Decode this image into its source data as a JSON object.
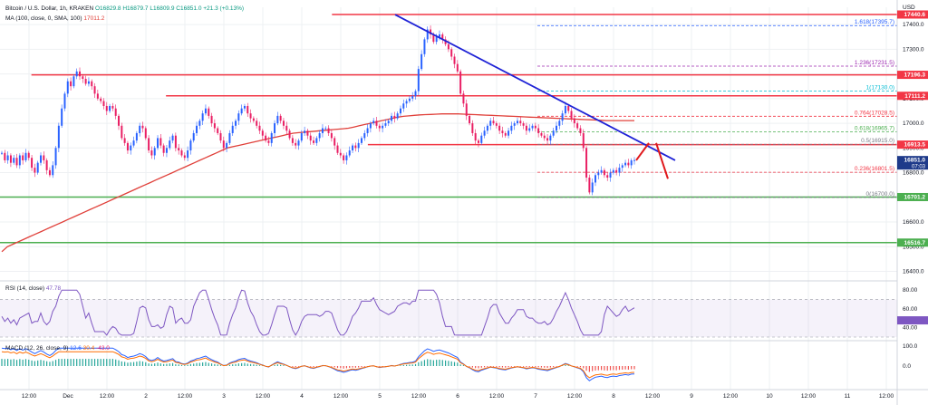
{
  "header": {
    "symbol_line": "Bitcoin / U.S. Dollar, 1h, KRAKEN",
    "ohlc": "O16829.8  H16879.7  L16809.9  C16851.0  +21.3 (+0.13%)",
    "ma_label": "MA (100, close, 0, SMA, 100)",
    "ma_value": "17011.2",
    "currency": "USD"
  },
  "price_axis": {
    "ticks": [
      "17400.0",
      "17300.0",
      "17200.0",
      "17100.0",
      "17000.0",
      "16900.0",
      "16800.0",
      "16700.0",
      "16600.0",
      "16500.0",
      "16400.0"
    ]
  },
  "price_badges": [
    {
      "label": "17440.6",
      "color": "#f23645",
      "price": 17440.6
    },
    {
      "label": "17196.3",
      "color": "#f23645",
      "price": 17196.3
    },
    {
      "label": "17111.2",
      "color": "#f23645",
      "price": 17111.2
    },
    {
      "label": "16913.5",
      "color": "#f23645",
      "price": 16913.5
    },
    {
      "label": "16851.0",
      "sub": "07:03",
      "color": "#1e3a8a",
      "price": 16851.0
    },
    {
      "label": "16701.2",
      "color": "#4caf50",
      "price": 16701.2
    },
    {
      "label": "16516.7",
      "color": "#4caf50",
      "price": 16516.7
    }
  ],
  "horizontal_levels": [
    {
      "price": 17440.6,
      "color": "#f23645",
      "x0": 0.37,
      "x1": 1.0
    },
    {
      "price": 17196.3,
      "color": "#f23645",
      "x0": 0.035,
      "x1": 1.0
    },
    {
      "price": 17111.2,
      "color": "#f23645",
      "x0": 0.185,
      "x1": 1.0
    },
    {
      "price": 16913.5,
      "color": "#f23645",
      "x0": 0.41,
      "x1": 1.0
    },
    {
      "price": 16701.2,
      "color": "#4caf50",
      "x0": 0.0,
      "x1": 1.0
    },
    {
      "price": 16516.7,
      "color": "#4caf50",
      "x0": 0.0,
      "x1": 1.0
    }
  ],
  "fib_levels": [
    {
      "label": "1.618(17395.7)",
      "price": 17395.7,
      "color": "#2962ff"
    },
    {
      "label": "1.236(17231.5)",
      "price": 17231.5,
      "color": "#9c27b0"
    },
    {
      "label": "1(17130.0)",
      "price": 17130.0,
      "color": "#00bcd4"
    },
    {
      "label": "0.764(17028.5)",
      "price": 17028.5,
      "color": "#f23645"
    },
    {
      "label": "0.618(16965.7)",
      "price": 16965.7,
      "color": "#4caf50"
    },
    {
      "label": "0.5(16915.0)",
      "price": 16915.0,
      "color": "#787b86"
    },
    {
      "label": "0.236(16801.5)",
      "price": 16801.5,
      "color": "#f23645"
    },
    {
      "label": "0(16700.0)",
      "price": 16700.0,
      "color": "#787b86"
    }
  ],
  "rsi": {
    "label": "RSI (14, close)",
    "value": "47.78",
    "ticks": [
      "80.00",
      "60.00",
      "40.00"
    ],
    "color": "#7e57c2"
  },
  "macd": {
    "label": "MACD (12, 26, close, 9)",
    "v1": "12.6",
    "v2": "30.4",
    "v3": "-43.0",
    "ticks": [
      "100.0",
      "0.0"
    ]
  },
  "time_axis": [
    "12:00",
    "Dec",
    "12:00",
    "2",
    "12:00",
    "3",
    "12:00",
    "4",
    "12:00",
    "5",
    "12:00",
    "6",
    "12:00",
    "7",
    "12:00",
    "8",
    "12:00",
    "9",
    "12:00",
    "10",
    "12:00",
    "11",
    "12:00"
  ],
  "chart_data": {
    "type": "candlestick",
    "title": "Bitcoin / U.S. Dollar, 1h, KRAKEN",
    "ylabel": "USD",
    "ylim": [
      16380,
      17470
    ],
    "x_start": "Nov 30 06:00",
    "close": [
      16880,
      16850,
      16870,
      16840,
      16860,
      16830,
      16870,
      16850,
      16880,
      16860,
      16820,
      16800,
      16840,
      16870,
      16850,
      16810,
      16790,
      16830,
      16900,
      16990,
      17060,
      17120,
      17170,
      17150,
      17190,
      17210,
      17190,
      17180,
      17160,
      17170,
      17150,
      17120,
      17100,
      17090,
      17070,
      17050,
      17070,
      17060,
      17030,
      16990,
      16940,
      16920,
      16890,
      16910,
      16930,
      16960,
      16990,
      16980,
      16940,
      16890,
      16870,
      16900,
      16940,
      16910,
      16880,
      16900,
      16930,
      16950,
      16900,
      16890,
      16870,
      16860,
      16890,
      16930,
      16960,
      16990,
      17010,
      17040,
      17060,
      17030,
      17000,
      16980,
      16960,
      16930,
      16900,
      16920,
      16960,
      16990,
      17010,
      17040,
      17060,
      17070,
      17040,
      17020,
      17010,
      16990,
      16970,
      16950,
      16930,
      16920,
      16960,
      17000,
      17030,
      17010,
      16990,
      16970,
      16940,
      16920,
      16910,
      16930,
      16960,
      16970,
      16950,
      16930,
      16920,
      16940,
      16960,
      16980,
      16980,
      16960,
      16940,
      16910,
      16880,
      16870,
      16850,
      16870,
      16890,
      16910,
      16900,
      16920,
      16940,
      16960,
      16980,
      17000,
      17010,
      16990,
      16980,
      16990,
      17000,
      17010,
      17030,
      17020,
      17040,
      17060,
      17080,
      17090,
      17100,
      17110,
      17130,
      17220,
      17280,
      17340,
      17380,
      17360,
      17330,
      17350,
      17360,
      17340,
      17320,
      17300,
      17270,
      17240,
      17210,
      17120,
      17080,
      17030,
      17000,
      16960,
      16930,
      16920,
      16950,
      16970,
      16990,
      17010,
      17000,
      16990,
      16970,
      16960,
      16950,
      16970,
      16990,
      17000,
      17010,
      17000,
      16990,
      16970,
      16980,
      16990,
      16980,
      16960,
      16950,
      16940,
      16930,
      16950,
      16970,
      16990,
      17010,
      17040,
      17070,
      17050,
      17020,
      17000,
      16980,
      16960,
      16900,
      16780,
      16720,
      16760,
      16790,
      16800,
      16810,
      16790,
      16780,
      16800,
      16810,
      16800,
      16820,
      16830,
      16840,
      16830,
      16850,
      16851
    ],
    "ma100": [
      16480,
      16500,
      16510,
      16520,
      16530,
      16540,
      16550,
      16560,
      16570,
      16580,
      16590,
      16600,
      16610,
      16620,
      16630,
      16640,
      16650,
      16660,
      16670,
      16680,
      16690,
      16700,
      16710,
      16720,
      16730,
      16740,
      16750,
      16760,
      16770,
      16780,
      16790,
      16800,
      16810,
      16820,
      16830,
      16840,
      16850,
      16860,
      16870,
      16880,
      16890,
      16900,
      16905,
      16910,
      16915,
      16920,
      16925,
      16930,
      16935,
      16940,
      16945,
      16950,
      16955,
      16960,
      16962,
      16964,
      16966,
      16968,
      16970,
      16972,
      16974,
      16976,
      16978,
      16980,
      16985,
      16990,
      16995,
      17000,
      17005,
      17010,
      17015,
      17020,
      17025,
      17028,
      17030,
      17032,
      17034,
      17035,
      17036,
      17037,
      17038,
      17038,
      17038,
      17038,
      17037,
      17036,
      17035,
      17034,
      17033,
      17032,
      17031,
      17030,
      17029,
      17028,
      17027,
      17026,
      17025,
      17024,
      17023,
      17022,
      17021,
      17020,
      17019,
      17018,
      17017,
      17016,
      17015,
      17014,
      17013,
      17012,
      17011,
      17011,
      17011,
      17011,
      17011,
      17011
    ]
  }
}
